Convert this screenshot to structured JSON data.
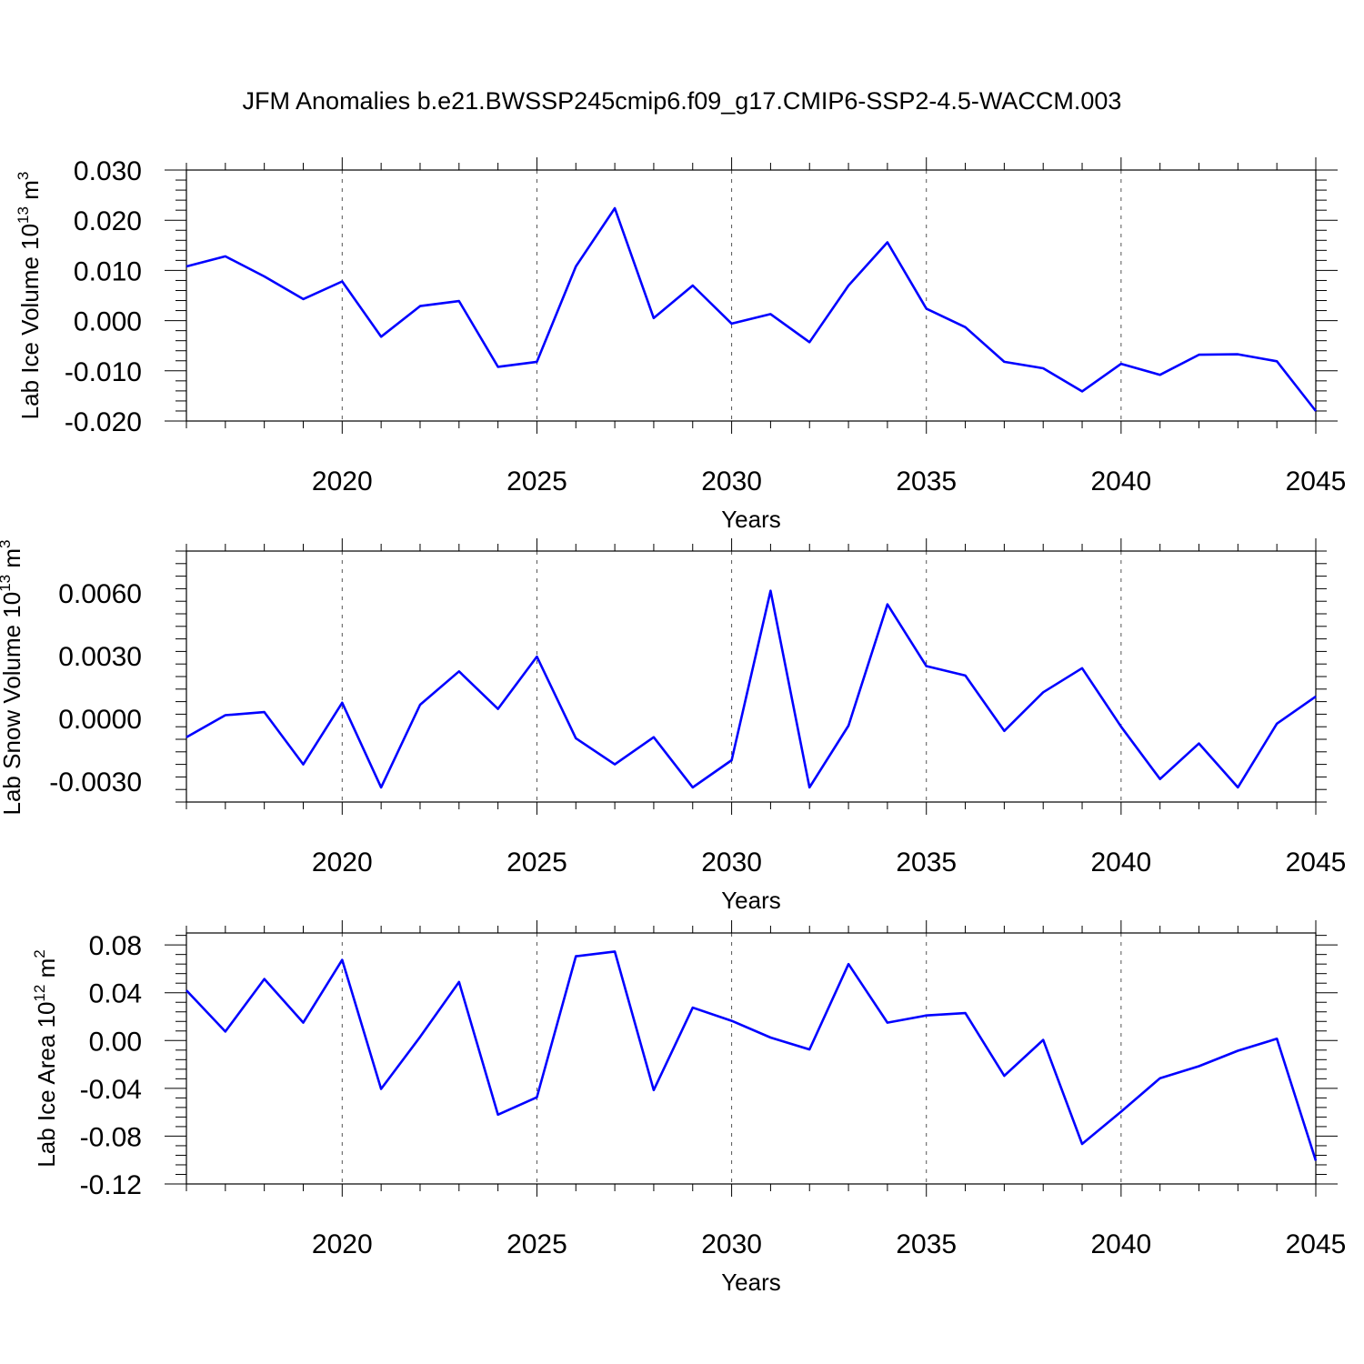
{
  "title": "JFM Anomalies b.e21.BWSSP245cmip6.f09_g17.CMIP6-SSP2-4.5-WACCM.003",
  "colors": {
    "line": "#0000ff",
    "axis": "#000000",
    "grid": "#555555"
  },
  "chart_data": [
    {
      "type": "line",
      "ylabel": "Lab Ice Volume 10",
      "ylabel_exp": "13",
      "ylabel_unit": " m",
      "ylabel_unit_exp": "3",
      "xlabel": "Years",
      "xlim": [
        2016,
        2045
      ],
      "ylim": [
        -0.02,
        0.03
      ],
      "xticks": [
        2020,
        2025,
        2030,
        2035,
        2040,
        2045
      ],
      "xtick_labels": [
        "2020",
        "2025",
        "2030",
        "2035",
        "2040",
        "2045"
      ],
      "yticks": [
        -0.02,
        -0.01,
        0.0,
        0.01,
        0.02,
        0.03
      ],
      "ytick_labels": [
        "-0.020",
        "-0.010",
        "0.000",
        "0.010",
        "0.020",
        "0.030"
      ],
      "grid": "vertical dashed at major x ticks",
      "x": [
        2016,
        2017,
        2018,
        2019,
        2020,
        2021,
        2022,
        2023,
        2024,
        2025,
        2026,
        2027,
        2028,
        2029,
        2030,
        2031,
        2032,
        2033,
        2034,
        2035,
        2036,
        2037,
        2038,
        2039,
        2040,
        2041,
        2042,
        2043,
        2044,
        2045
      ],
      "series": [
        {
          "name": "Lab Ice Volume",
          "values": [
            0.0108,
            0.0128,
            0.0088,
            0.0043,
            0.0078,
            -0.0032,
            0.0029,
            0.0039,
            -0.0092,
            -0.0082,
            0.0108,
            0.0224,
            0.0005,
            0.007,
            -0.0006,
            0.0013,
            -0.0043,
            0.007,
            0.0156,
            0.0024,
            -0.0013,
            -0.0082,
            -0.0095,
            -0.0141,
            -0.0086,
            -0.0108,
            -0.0068,
            -0.0067,
            -0.0081,
            -0.018
          ]
        }
      ]
    },
    {
      "type": "line",
      "ylabel": "Lab Snow Volume 10",
      "ylabel_exp": "13",
      "ylabel_unit": " m",
      "ylabel_unit_exp": "3",
      "xlabel": "Years",
      "xlim": [
        2016,
        2045
      ],
      "ylim": [
        -0.004,
        0.008
      ],
      "xticks": [
        2020,
        2025,
        2030,
        2035,
        2040,
        2045
      ],
      "xtick_labels": [
        "2020",
        "2025",
        "2030",
        "2035",
        "2040",
        "2045"
      ],
      "yticks": [
        -0.003,
        0.0,
        0.003,
        0.006
      ],
      "ytick_labels": [
        "-0.0030",
        "0.0000",
        "0.0030",
        "0.0060"
      ],
      "grid": "vertical dashed at major x ticks",
      "x": [
        2016,
        2017,
        2018,
        2019,
        2020,
        2021,
        2022,
        2023,
        2024,
        2025,
        2026,
        2027,
        2028,
        2029,
        2030,
        2031,
        2032,
        2033,
        2034,
        2035,
        2036,
        2037,
        2038,
        2039,
        2040,
        2041,
        2042,
        2043,
        2044,
        2045
      ],
      "series": [
        {
          "name": "Lab Snow Volume",
          "values": [
            -0.0009,
            0.00015,
            0.0003,
            -0.0022,
            0.00075,
            -0.0033,
            0.00065,
            0.00225,
            0.00045,
            0.00295,
            -0.00095,
            -0.0022,
            -0.0009,
            -0.0033,
            -0.002,
            0.0061,
            -0.0033,
            -0.00035,
            0.00545,
            0.0025,
            0.00205,
            -0.0006,
            0.00125,
            0.0024,
            -0.0004,
            -0.0029,
            -0.0012,
            -0.0033,
            -0.00025,
            0.00105
          ]
        }
      ]
    },
    {
      "type": "line",
      "ylabel": "Lab Ice Area 10",
      "ylabel_exp": "12",
      "ylabel_unit": " m",
      "ylabel_unit_exp": "2",
      "xlabel": "Years",
      "xlim": [
        2016,
        2045
      ],
      "ylim": [
        -0.12,
        0.09
      ],
      "xticks": [
        2020,
        2025,
        2030,
        2035,
        2040,
        2045
      ],
      "xtick_labels": [
        "2020",
        "2025",
        "2030",
        "2035",
        "2040",
        "2045"
      ],
      "yticks": [
        -0.12,
        -0.08,
        -0.04,
        0.0,
        0.04,
        0.08
      ],
      "ytick_labels": [
        "-0.12",
        "-0.08",
        "-0.04",
        "0.00",
        "0.04",
        "0.08"
      ],
      "grid": "vertical dashed at major x ticks",
      "x": [
        2016,
        2017,
        2018,
        2019,
        2020,
        2021,
        2022,
        2023,
        2024,
        2025,
        2026,
        2027,
        2028,
        2029,
        2030,
        2031,
        2032,
        2033,
        2034,
        2035,
        2036,
        2037,
        2038,
        2039,
        2040,
        2041,
        2042,
        2043,
        2044,
        2045
      ],
      "series": [
        {
          "name": "Lab Ice Area",
          "values": [
            0.042,
            0.0075,
            0.0515,
            0.015,
            0.0675,
            -0.0405,
            0.003,
            0.049,
            -0.062,
            -0.0475,
            0.0705,
            0.0745,
            -0.0415,
            0.0275,
            0.0165,
            0.0025,
            -0.0075,
            0.064,
            0.015,
            0.021,
            0.023,
            -0.0295,
            0.0005,
            -0.0865,
            -0.0595,
            -0.0315,
            -0.0215,
            -0.0085,
            0.0015,
            -0.1005
          ]
        }
      ]
    }
  ]
}
